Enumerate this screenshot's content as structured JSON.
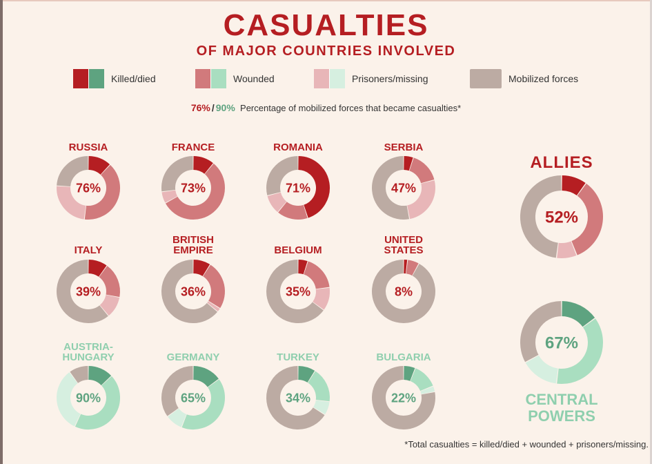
{
  "header": {
    "title": "CASUALTIES",
    "subtitle": "OF MAJOR COUNTRIES INVOLVED"
  },
  "legend": {
    "killed": "Killed/died",
    "wounded": "Wounded",
    "prisoners": "Prisoners/missing",
    "mobilized": "Mobilized forces"
  },
  "note": {
    "allies_pct": "76%",
    "central_pct": "90%",
    "text": "Percentage of mobilized forces that became casualties*"
  },
  "footnote": "*Total casualties = killed/died + wounded + prisoners/missing.",
  "colors": {
    "allies_killed": "#b51e22",
    "allies_wounded": "#d17a7c",
    "allies_prisoners": "#e8b6b8",
    "central_killed": "#5ea380",
    "central_wounded": "#a9dec0",
    "central_prisoners": "#d6efe0",
    "mobilized": "#bcaba3",
    "allies_text": "#b51e22",
    "central_text": "#8fcfae"
  },
  "chart_data": {
    "type": "donut",
    "title": "CASUALTIES",
    "subtitle": "OF MAJOR COUNTRIES INVOLVED",
    "segments_order": [
      "Killed/died",
      "Wounded",
      "Prisoners/missing",
      "Mobilized forces"
    ],
    "countries": [
      {
        "name": "RUSSIA",
        "side": "allies",
        "percent_label": "76%",
        "killed": 12,
        "wounded": 40,
        "prisoners": 24
      },
      {
        "name": "FRANCE",
        "side": "allies",
        "percent_label": "73%",
        "killed": 11,
        "wounded": 56,
        "prisoners": 6
      },
      {
        "name": "ROMANIA",
        "side": "allies",
        "percent_label": "71%",
        "killed": 45,
        "wounded": 16,
        "prisoners": 10
      },
      {
        "name": "SERBIA",
        "side": "allies",
        "percent_label": "47%",
        "killed": 5,
        "wounded": 16,
        "prisoners": 26
      },
      {
        "name": "ITALY",
        "side": "allies",
        "percent_label": "39%",
        "killed": 10,
        "wounded": 18,
        "prisoners": 11
      },
      {
        "name": "BRITISH EMPIRE",
        "side": "allies",
        "percent_label": "36%",
        "killed": 9,
        "wounded": 25,
        "prisoners": 2
      },
      {
        "name": "BELGIUM",
        "side": "allies",
        "percent_label": "35%",
        "killed": 5,
        "wounded": 18,
        "prisoners": 12
      },
      {
        "name": "UNITED STATES",
        "side": "allies",
        "percent_label": "8%",
        "killed": 2,
        "wounded": 6,
        "prisoners": 0
      },
      {
        "name": "AUSTRIA-HUNGARY",
        "side": "central",
        "percent_label": "90%",
        "killed": 13,
        "wounded": 44,
        "prisoners": 33
      },
      {
        "name": "GERMANY",
        "side": "central",
        "percent_label": "65%",
        "killed": 15,
        "wounded": 41,
        "prisoners": 9
      },
      {
        "name": "TURKEY",
        "side": "central",
        "percent_label": "34%",
        "killed": 9,
        "wounded": 18,
        "prisoners": 7
      },
      {
        "name": "BULGARIA",
        "side": "central",
        "percent_label": "22%",
        "killed": 6,
        "wounded": 13,
        "prisoners": 3
      }
    ],
    "groups": [
      {
        "name": "ALLIES",
        "side": "allies",
        "percent_label": "52%",
        "killed": 10,
        "wounded": 34,
        "prisoners": 8
      },
      {
        "name": "CENTRAL POWERS",
        "side": "central",
        "percent_label": "67%",
        "killed": 15,
        "wounded": 37,
        "prisoners": 15
      }
    ]
  }
}
